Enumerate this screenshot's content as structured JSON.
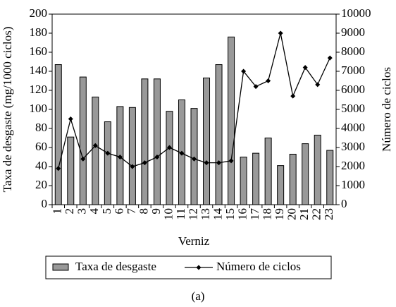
{
  "chart_data": {
    "type": "bar_line",
    "categories": [
      "1",
      "2",
      "3",
      "4",
      "5",
      "6",
      "7",
      "8",
      "9",
      "10",
      "11",
      "12",
      "13",
      "14",
      "15",
      "16",
      "17",
      "18",
      "19",
      "20",
      "21",
      "22",
      "23"
    ],
    "series": [
      {
        "name": "Taxa de desgaste",
        "type": "bar",
        "color": "#999999",
        "values": [
          147,
          71,
          134,
          113,
          87,
          103,
          102,
          132,
          132,
          98,
          110,
          101,
          133,
          147,
          176,
          50,
          54,
          70,
          41,
          53,
          64,
          73,
          57
        ]
      },
      {
        "name": "Número de ciclos",
        "type": "line",
        "axis": "y2",
        "color": "#000000",
        "values": [
          1900,
          4500,
          2400,
          3100,
          2700,
          2500,
          2000,
          2200,
          2500,
          3000,
          2700,
          2400,
          2200,
          2200,
          2300,
          7000,
          6200,
          6500,
          9000,
          5700,
          7200,
          6300,
          7700
        ]
      }
    ],
    "xlabel": "Verniz",
    "ylabel": "Taxa de desgaste (mg/1000 ciclos)",
    "y2label": "Número de ciclos",
    "ylim": [
      0,
      200
    ],
    "yticks": [
      0,
      20,
      40,
      60,
      80,
      100,
      120,
      140,
      160,
      180,
      200
    ],
    "y2lim": [
      0,
      10000
    ],
    "y2ticks": [
      0,
      1000,
      2000,
      3000,
      4000,
      5000,
      6000,
      7000,
      8000,
      9000,
      10000
    ],
    "legend": "bottom",
    "caption": "(a)"
  }
}
